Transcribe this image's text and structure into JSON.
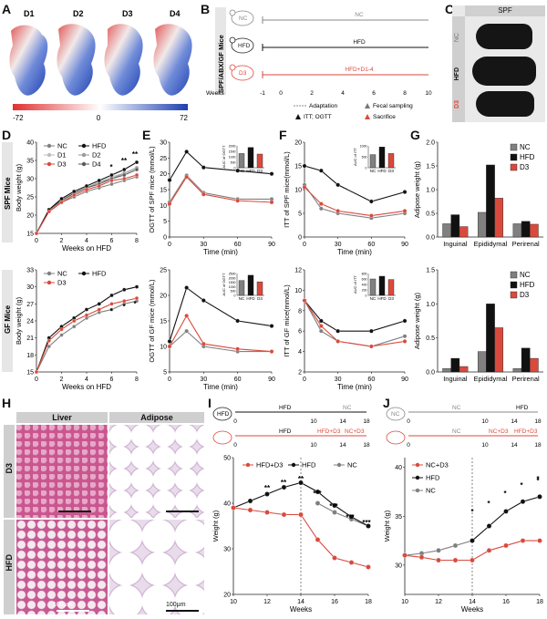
{
  "panel_letters": {
    "A": "A",
    "B": "B",
    "C": "C",
    "D": "D",
    "E": "E",
    "F": "F",
    "G": "G",
    "H": "H",
    "I": "I",
    "J": "J"
  },
  "panel_a": {
    "labels": [
      "D1",
      "D2",
      "D3",
      "D4"
    ],
    "scale_min": "-72",
    "scale_mid": "0",
    "scale_max": "72"
  },
  "panel_b": {
    "side_label": "SPF/ABX/GF Mice",
    "rows": [
      {
        "icon": "NC",
        "label": "NC"
      },
      {
        "icon": "HFD",
        "label": "HFD"
      },
      {
        "icon": "D3",
        "label": "HFD+D1-4"
      }
    ],
    "weeks_label": "Weeks",
    "week_ticks": [
      "-1",
      "0",
      "2",
      "4",
      "6",
      "8",
      "10"
    ],
    "legend": [
      "Adaptation",
      "Fecal sampling",
      "ITT; OGTT",
      "Sacrifice"
    ]
  },
  "panel_c": {
    "header": "SPF",
    "rows": [
      "NC",
      "HFD",
      "D3"
    ]
  },
  "panel_d": {
    "spf_label": "SPF Mice",
    "gf_label": "GF Mice",
    "ylabel": "Body weight (g)",
    "xlabel": "Weeks on HFD",
    "spf_legend": [
      "NC",
      "HFD",
      "D1",
      "D2",
      "D3",
      "D4"
    ],
    "gf_legend": [
      "NC",
      "HFD",
      "D3"
    ],
    "spf_yticks": [
      "15",
      "20",
      "25",
      "30",
      "35",
      "40"
    ],
    "gf_yticks": [
      "15",
      "18",
      "21",
      "24",
      "27",
      "30",
      "33"
    ],
    "xticks": [
      "0",
      "2",
      "4",
      "6",
      "8"
    ],
    "spf_stars": [
      "*",
      "**",
      "**"
    ],
    "gf_stars": [
      "*",
      "*",
      "*"
    ]
  },
  "panel_e": {
    "ylabel_top": "OGTT of SPF mice (mmol/L)",
    "ylabel_bottom": "OGTT of GF mice (mmol/L)",
    "xlabel": "Time (min)",
    "xticks": [
      "0",
      "30",
      "60",
      "90"
    ],
    "top_yticks": [
      "0",
      "5",
      "10",
      "15",
      "20",
      "25",
      "30"
    ],
    "bottom_yticks": [
      "5",
      "10",
      "15",
      "20",
      "25"
    ],
    "inset_ylabel": "AUC of OGTT",
    "inset_x": [
      "NC",
      "HFD",
      "D3"
    ],
    "inset_top_yticks": [
      "0",
      "500",
      "1000",
      "1500",
      "2000"
    ],
    "inset_bottom_yticks": [
      "0",
      "500",
      "1000",
      "1500",
      "2000",
      "2500"
    ]
  },
  "panel_f": {
    "ylabel_top": "ITT of SPF mice(mmol/L)",
    "ylabel_bottom": "ITT of GF mice(mmol/L)",
    "xlabel": "Time (min)",
    "xticks": [
      "0",
      "30",
      "60",
      "90"
    ],
    "top_yticks": [
      "0",
      "5",
      "10",
      "15",
      "20"
    ],
    "bottom_yticks": [
      "2",
      "4",
      "6",
      "8",
      "10",
      "12"
    ],
    "inset_ylabel": "AUC of ITT",
    "inset_x": [
      "NC",
      "HFD",
      "D3"
    ],
    "inset_top_yticks": [
      "0",
      "500",
      "1000"
    ],
    "inset_bottom_yticks": [
      "0",
      "200",
      "400",
      "600",
      "800"
    ]
  },
  "panel_g": {
    "ylabel": "Adipose weight (g)",
    "categories": [
      "Inguinal",
      "Epididymal",
      "Perirenal"
    ],
    "legend": [
      "NC",
      "HFD",
      "D3"
    ],
    "top_yticks": [
      "0.0",
      "0.5",
      "1.0",
      "1.5",
      "2.0"
    ],
    "bottom_yticks": [
      "0.0",
      "0.5",
      "1.0",
      "1.5"
    ]
  },
  "panel_h": {
    "col_headers": [
      "Liver",
      "Adipose"
    ],
    "row_labels": [
      "D3",
      "HFD"
    ],
    "scale_left": "100μm",
    "scale_right": "100μm"
  },
  "panel_i": {
    "timeline_top": [
      "HFD",
      "HFD",
      "NC"
    ],
    "timeline_bottom": [
      "HFD",
      "HFD+D3",
      "NC+D3"
    ],
    "timeline_ticks": [
      "0",
      "10",
      "14",
      "18"
    ],
    "legend": [
      "HFD+D3",
      "HFD",
      "NC"
    ],
    "ylabel": "Weight (g)",
    "xlabel": "Weeks",
    "yticks": [
      "20",
      "30",
      "40",
      "50"
    ],
    "xticks": [
      "10",
      "12",
      "14",
      "16",
      "18"
    ],
    "stars": [
      "**",
      "**",
      "**",
      "***",
      "***",
      "***",
      "***"
    ]
  },
  "panel_j": {
    "timeline_top": [
      "NC",
      "NC",
      "HFD"
    ],
    "timeline_bottom": [
      "NC",
      "NC+D3",
      "HFD+D3"
    ],
    "timeline_ticks": [
      "0",
      "10",
      "14",
      "18"
    ],
    "legend": [
      "NC+D3",
      "HFD",
      "NC"
    ],
    "ylabel": "Weight (g)",
    "xlabel": "Weeks",
    "yticks": [
      "30",
      "35",
      "40"
    ],
    "xticks": [
      "10",
      "12",
      "14",
      "16",
      "18"
    ],
    "stars": [
      "*",
      "*",
      "*",
      "*",
      "*",
      "*"
    ]
  },
  "colors": {
    "nc": "#808080",
    "hfd": "#111111",
    "d3": "#d94a3d",
    "d1": "#bdbdbd",
    "d2": "#9a9a9a",
    "d4": "#5a5a5a"
  },
  "chart_data": [
    {
      "type": "line",
      "id": "D-SPF",
      "xlabel": "Weeks on HFD",
      "ylabel": "Body weight (g)",
      "ylim": [
        15,
        40
      ],
      "x": [
        0,
        1,
        2,
        3,
        4,
        5,
        6,
        7,
        8
      ],
      "series": [
        {
          "name": "NC",
          "values": [
            15,
            21,
            23.5,
            25,
            26.5,
            27.5,
            28.5,
            29.5,
            30.5
          ]
        },
        {
          "name": "HFD",
          "values": [
            15,
            21.5,
            24.5,
            26.5,
            28,
            29.5,
            31,
            32.5,
            34.5
          ]
        },
        {
          "name": "D1",
          "values": [
            15,
            21.5,
            24,
            26,
            27.5,
            29,
            30.5,
            31.5,
            33
          ]
        },
        {
          "name": "D2",
          "values": [
            15,
            21.5,
            24,
            26,
            27.5,
            29,
            30,
            31.5,
            33
          ]
        },
        {
          "name": "D3",
          "values": [
            15,
            21,
            23.5,
            25.5,
            27,
            28,
            29.5,
            30,
            31
          ]
        },
        {
          "name": "D4",
          "values": [
            15,
            21.5,
            24,
            26,
            27.5,
            28.5,
            30,
            31,
            32.5
          ]
        }
      ]
    },
    {
      "type": "line",
      "id": "D-GF",
      "xlabel": "Weeks on HFD",
      "ylabel": "Body weight (g)",
      "ylim": [
        15,
        33
      ],
      "x": [
        0,
        1,
        2,
        3,
        4,
        5,
        6,
        7,
        8
      ],
      "series": [
        {
          "name": "NC",
          "values": [
            15,
            19.5,
            21.5,
            23,
            24.5,
            25.5,
            26,
            27,
            27.5
          ]
        },
        {
          "name": "HFD",
          "values": [
            15,
            21,
            23,
            24.5,
            26,
            27,
            28.5,
            29.5,
            30
          ]
        },
        {
          "name": "D3",
          "values": [
            15,
            20.5,
            22.5,
            24,
            25,
            26,
            27,
            27.5,
            28
          ]
        }
      ]
    },
    {
      "type": "line",
      "id": "E-SPF",
      "xlabel": "Time (min)",
      "ylabel": "OGTT of SPF mice (mmol/L)",
      "ylim": [
        0,
        30
      ],
      "x": [
        0,
        15,
        30,
        60,
        90
      ],
      "series": [
        {
          "name": "HFD",
          "values": [
            18,
            27,
            22,
            21,
            20
          ]
        },
        {
          "name": "NC",
          "values": [
            11,
            19.5,
            14,
            12,
            12
          ]
        },
        {
          "name": "D3",
          "values": [
            10.5,
            19,
            13.5,
            11.5,
            11
          ]
        }
      ],
      "inset": {
        "ylabel": "AUC of OGTT",
        "categories": [
          "NC",
          "HFD",
          "D3"
        ],
        "values": [
          1300,
          1850,
          1250
        ]
      }
    },
    {
      "type": "line",
      "id": "E-GF",
      "xlabel": "Time (min)",
      "ylabel": "OGTT of GF mice (mmol/L)",
      "ylim": [
        5,
        25
      ],
      "x": [
        0,
        15,
        30,
        60,
        90
      ],
      "series": [
        {
          "name": "HFD",
          "values": [
            11,
            21.5,
            19,
            15,
            14
          ]
        },
        {
          "name": "NC",
          "values": [
            10,
            13,
            10,
            9,
            9
          ]
        },
        {
          "name": "D3",
          "values": [
            10,
            16,
            10.5,
            9.5,
            9
          ]
        }
      ],
      "inset": {
        "ylabel": "AUC of OGTT",
        "categories": [
          "NC",
          "HFD",
          "D3"
        ],
        "values": [
          1700,
          2300,
          1550
        ]
      }
    },
    {
      "type": "line",
      "id": "F-SPF",
      "xlabel": "Time (min)",
      "ylabel": "ITT of SPF mice(mmol/L)",
      "ylim": [
        0,
        20
      ],
      "x": [
        0,
        15,
        30,
        60,
        90
      ],
      "series": [
        {
          "name": "HFD",
          "values": [
            15,
            14,
            11,
            7.5,
            9.5
          ]
        },
        {
          "name": "NC",
          "values": [
            11,
            6,
            5,
            4,
            5
          ]
        },
        {
          "name": "D3",
          "values": [
            10.5,
            7,
            5.5,
            4.5,
            5.5
          ]
        }
      ],
      "inset": {
        "ylabel": "AUC of ITT",
        "categories": [
          "NC",
          "HFD",
          "D3"
        ],
        "values": [
          600,
          950,
          650
        ]
      }
    },
    {
      "type": "line",
      "id": "F-GF",
      "xlabel": "Time (min)",
      "ylabel": "ITT of GF mice(mmol/L)",
      "ylim": [
        2,
        12
      ],
      "x": [
        0,
        15,
        30,
        60,
        90
      ],
      "series": [
        {
          "name": "HFD",
          "values": [
            9,
            7,
            6,
            6,
            7
          ]
        },
        {
          "name": "NC",
          "values": [
            9,
            6,
            5,
            4.5,
            5.5
          ]
        },
        {
          "name": "D3",
          "values": [
            9,
            6.5,
            5,
            4.5,
            5
          ]
        }
      ],
      "inset": {
        "ylabel": "AUC of ITT",
        "categories": [
          "NC",
          "HFD",
          "D3"
        ],
        "values": [
          600,
          700,
          580
        ]
      }
    },
    {
      "type": "bar",
      "id": "G-SPF",
      "ylabel": "Adipose weight (g)",
      "ylim": [
        0,
        2
      ],
      "categories": [
        "Inguinal",
        "Epididymal",
        "Perirenal"
      ],
      "series": [
        {
          "name": "NC",
          "values": [
            0.28,
            0.52,
            0.28
          ]
        },
        {
          "name": "HFD",
          "values": [
            0.47,
            1.52,
            0.33
          ]
        },
        {
          "name": "D3",
          "values": [
            0.22,
            0.82,
            0.27
          ]
        }
      ]
    },
    {
      "type": "bar",
      "id": "G-GF",
      "ylabel": "Adipose weight (g)",
      "ylim": [
        0,
        1.5
      ],
      "categories": [
        "Inguinal",
        "Epididymal",
        "Perirenal"
      ],
      "series": [
        {
          "name": "NC",
          "values": [
            0.05,
            0.3,
            0.05
          ]
        },
        {
          "name": "HFD",
          "values": [
            0.2,
            1.0,
            0.35
          ]
        },
        {
          "name": "D3",
          "values": [
            0.08,
            0.65,
            0.2
          ]
        }
      ]
    },
    {
      "type": "line",
      "id": "I",
      "xlabel": "Weeks",
      "ylabel": "Weight (g)",
      "ylim": [
        20,
        50
      ],
      "x": [
        10,
        11,
        12,
        13,
        14,
        15,
        16,
        17,
        18
      ],
      "series": [
        {
          "name": "HFD+D3",
          "values": [
            39,
            38.5,
            38,
            37.5,
            37.5,
            32,
            28,
            27,
            26
          ]
        },
        {
          "name": "HFD",
          "values": [
            39,
            40.5,
            42,
            43.5,
            44.5,
            42.5,
            39.5,
            37,
            35
          ]
        },
        {
          "name": "NC",
          "values": [
            null,
            null,
            null,
            null,
            null,
            40,
            38,
            36.5,
            35
          ]
        }
      ]
    },
    {
      "type": "line",
      "id": "J",
      "xlabel": "Weeks",
      "ylabel": "Weight (g)",
      "ylim": [
        27,
        41
      ],
      "x": [
        10,
        11,
        12,
        13,
        14,
        15,
        16,
        17,
        18
      ],
      "series": [
        {
          "name": "NC+D3",
          "values": [
            31,
            30.8,
            30.5,
            30.5,
            30.5,
            31.5,
            32,
            32.5,
            32.5
          ]
        },
        {
          "name": "HFD",
          "values": [
            null,
            null,
            null,
            null,
            32.5,
            34,
            35.5,
            36.5,
            37
          ]
        },
        {
          "name": "NC",
          "values": [
            31,
            31.2,
            31.5,
            32,
            32.5,
            null,
            null,
            null,
            null
          ]
        }
      ]
    }
  ]
}
